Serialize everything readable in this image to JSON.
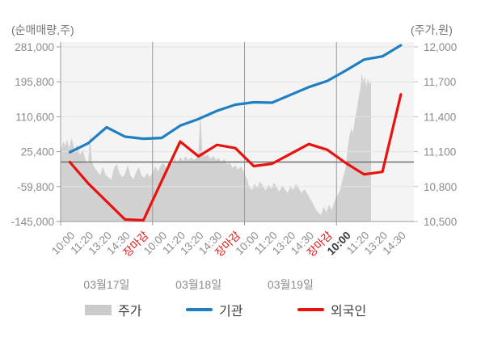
{
  "colors": {
    "plot_bg": "#f4f4f4",
    "grid": "#e3e3e3",
    "day_separator": "#9a9a9a",
    "axis_line": "#9a9a9a",
    "reference_line": "#7b7b7b",
    "price_area_fill": "#d1d1d1",
    "institution_blue": "#1e7fc2",
    "foreigner_red": "#e8120e",
    "tick_text": "#8c8c8c",
    "close_label_red": "#e8120e",
    "current_label_dark": "#3a3a3a",
    "date_text": "#8c8c8c"
  },
  "left_axis": {
    "title": "(순매매량,주)",
    "ticks": [
      "281,000",
      "195,800",
      "110,600",
      "25,400",
      "-59,800",
      "-145,000"
    ],
    "range": [
      -145000,
      281000
    ]
  },
  "right_axis": {
    "title": "(주가,원)",
    "ticks": [
      "12,000",
      "11,700",
      "11,400",
      "11,100",
      "10,800",
      "10,500"
    ],
    "range": [
      10500,
      12000
    ]
  },
  "x_axis": {
    "labels": [
      {
        "text": "10:00",
        "style": "normal"
      },
      {
        "text": "11:20",
        "style": "normal"
      },
      {
        "text": "13:20",
        "style": "normal"
      },
      {
        "text": "14:30",
        "style": "normal"
      },
      {
        "text": "장마감",
        "style": "close"
      },
      {
        "text": "10:00",
        "style": "normal"
      },
      {
        "text": "11:20",
        "style": "normal"
      },
      {
        "text": "13:20",
        "style": "normal"
      },
      {
        "text": "14:30",
        "style": "normal"
      },
      {
        "text": "장마감",
        "style": "close"
      },
      {
        "text": "10:00",
        "style": "normal"
      },
      {
        "text": "11:20",
        "style": "normal"
      },
      {
        "text": "13:20",
        "style": "normal"
      },
      {
        "text": "14:30",
        "style": "normal"
      },
      {
        "text": "장마감",
        "style": "close"
      },
      {
        "text": "10:00",
        "style": "current"
      },
      {
        "text": "11:20",
        "style": "normal"
      },
      {
        "text": "13:20",
        "style": "normal"
      },
      {
        "text": "14:30",
        "style": "normal"
      }
    ],
    "dates": [
      "03월17일",
      "03월18일",
      "03월19일"
    ]
  },
  "legend": {
    "price_label": "주가",
    "institution_label": "기관",
    "foreigner_label": "외국인"
  },
  "chart_data": {
    "type": "line+area",
    "categories": [
      "10:00",
      "11:20",
      "13:20",
      "14:30",
      "장마감",
      "10:00",
      "11:20",
      "13:20",
      "14:30",
      "장마감",
      "10:00",
      "11:20",
      "13:20",
      "14:30",
      "장마감",
      "10:00",
      "11:20",
      "13:20",
      "14:30"
    ],
    "day_groups": [
      "03월17일",
      "03월18일",
      "03월19일"
    ],
    "left_axis_label": "(순매매량,주)",
    "right_axis_label": "(주가,원)",
    "left_range": [
      -145000,
      281000
    ],
    "right_range": [
      10500,
      12000
    ],
    "reference_value_volume": 0,
    "series": [
      {
        "name": "기관",
        "type": "line",
        "axis": "left",
        "values": [
          24000,
          46000,
          85000,
          62000,
          57000,
          59000,
          89000,
          105000,
          125000,
          140000,
          146000,
          145000,
          164000,
          183000,
          198000,
          223000,
          250000,
          258000,
          285000
        ]
      },
      {
        "name": "외국인",
        "type": "line",
        "axis": "left",
        "values": [
          0,
          -52000,
          -96000,
          -140000,
          -142000,
          -46000,
          50000,
          14000,
          42000,
          34000,
          -10000,
          -4000,
          20000,
          44000,
          30000,
          -2000,
          -30000,
          -24000,
          165000
        ]
      },
      {
        "name": "주가",
        "type": "area",
        "axis": "right",
        "points": [
          [
            -0.48,
            11120
          ],
          [
            -0.35,
            11190
          ],
          [
            -0.25,
            11150
          ],
          [
            -0.15,
            11205
          ],
          [
            -0.05,
            11130
          ],
          [
            0.1,
            11215
          ],
          [
            0.25,
            11120
          ],
          [
            0.4,
            11160
          ],
          [
            0.55,
            11070
          ],
          [
            0.7,
            11120
          ],
          [
            0.85,
            11030
          ],
          [
            1.0,
            10990
          ],
          [
            1.1,
            11260
          ],
          [
            1.2,
            11010
          ],
          [
            1.35,
            10960
          ],
          [
            1.5,
            10930
          ],
          [
            1.65,
            10900
          ],
          [
            1.8,
            10970
          ],
          [
            1.95,
            10900
          ],
          [
            2.1,
            10880
          ],
          [
            2.25,
            10860
          ],
          [
            2.4,
            10960
          ],
          [
            2.55,
            10995
          ],
          [
            2.7,
            10915
          ],
          [
            2.85,
            10880
          ],
          [
            3.0,
            10905
          ],
          [
            3.15,
            10985
          ],
          [
            3.3,
            10895
          ],
          [
            3.45,
            10865
          ],
          [
            3.6,
            10920
          ],
          [
            3.75,
            10970
          ],
          [
            3.9,
            10895
          ],
          [
            4.05,
            10875
          ],
          [
            4.2,
            10915
          ],
          [
            4.35,
            10880
          ],
          [
            4.5,
            10920
          ],
          [
            4.65,
            10975
          ],
          [
            4.8,
            10930
          ],
          [
            4.95,
            10985
          ],
          [
            5.1,
            11000
          ],
          [
            5.25,
            10955
          ],
          [
            5.4,
            11025
          ],
          [
            5.55,
            10985
          ],
          [
            5.7,
            11045
          ],
          [
            5.85,
            11005
          ],
          [
            6.0,
            11055
          ],
          [
            6.15,
            11020
          ],
          [
            6.3,
            11060
          ],
          [
            6.45,
            11025
          ],
          [
            6.6,
            11050
          ],
          [
            6.75,
            11030
          ],
          [
            6.9,
            11045
          ],
          [
            7.0,
            11090
          ],
          [
            7.1,
            11450
          ],
          [
            7.2,
            11100
          ],
          [
            7.35,
            11060
          ],
          [
            7.5,
            11075
          ],
          [
            7.65,
            11040
          ],
          [
            7.8,
            11065
          ],
          [
            7.95,
            11030
          ],
          [
            8.1,
            11045
          ],
          [
            8.25,
            11010
          ],
          [
            8.4,
            11040
          ],
          [
            8.55,
            10990
          ],
          [
            8.7,
            11005
          ],
          [
            8.85,
            10960
          ],
          [
            9.0,
            10985
          ],
          [
            9.15,
            10945
          ],
          [
            9.3,
            10975
          ],
          [
            9.45,
            10930
          ],
          [
            9.6,
            10880
          ],
          [
            9.75,
            10800
          ],
          [
            9.9,
            10770
          ],
          [
            10.05,
            10825
          ],
          [
            10.2,
            10790
          ],
          [
            10.35,
            10845
          ],
          [
            10.5,
            10805
          ],
          [
            10.65,
            10765
          ],
          [
            10.8,
            10815
          ],
          [
            10.95,
            10780
          ],
          [
            11.1,
            10835
          ],
          [
            11.25,
            10795
          ],
          [
            11.4,
            10755
          ],
          [
            11.55,
            10810
          ],
          [
            11.7,
            10775
          ],
          [
            11.85,
            10745
          ],
          [
            12.0,
            10800
          ],
          [
            12.15,
            10770
          ],
          [
            12.3,
            10825
          ],
          [
            12.45,
            10785
          ],
          [
            12.6,
            10745
          ],
          [
            12.75,
            10780
          ],
          [
            12.9,
            10740
          ],
          [
            13.05,
            10700
          ],
          [
            13.2,
            10660
          ],
          [
            13.35,
            10610
          ],
          [
            13.5,
            10580
          ],
          [
            13.65,
            10555
          ],
          [
            13.8,
            10625
          ],
          [
            13.95,
            10580
          ],
          [
            14.1,
            10645
          ],
          [
            14.25,
            10600
          ],
          [
            14.4,
            10680
          ],
          [
            14.55,
            10725
          ],
          [
            14.7,
            10770
          ],
          [
            14.85,
            10870
          ],
          [
            15.0,
            10960
          ],
          [
            15.1,
            11120
          ],
          [
            15.2,
            11230
          ],
          [
            15.3,
            11300
          ],
          [
            15.4,
            11260
          ],
          [
            15.5,
            11380
          ],
          [
            15.6,
            11460
          ],
          [
            15.7,
            11560
          ],
          [
            15.8,
            11640
          ],
          [
            15.88,
            11780
          ],
          [
            15.95,
            11700
          ],
          [
            16.05,
            11745
          ],
          [
            16.12,
            11660
          ],
          [
            16.2,
            11730
          ],
          [
            16.3,
            11680
          ],
          [
            16.38,
            11705
          ]
        ]
      }
    ]
  }
}
